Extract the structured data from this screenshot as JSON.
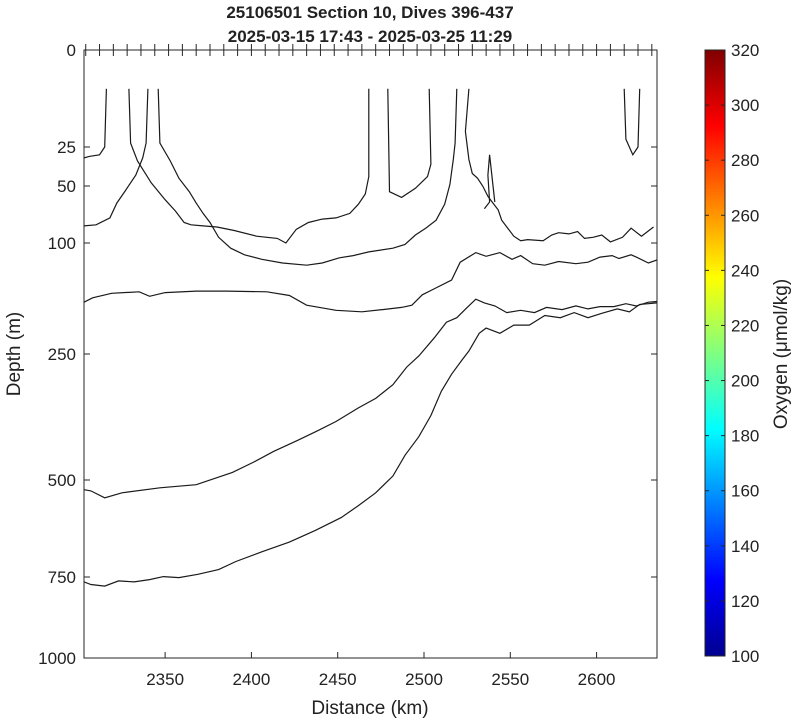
{
  "chart_data": {
    "type": "contour",
    "title_line1": "25106501 Section 10, Dives 396-437",
    "title_line2": "2025-03-15 17:43 - 2025-03-25 11:29",
    "xlabel": "Distance (km)",
    "ylabel": "Depth (m)",
    "xlim": [
      2303,
      2635
    ],
    "ylim": [
      1000,
      0
    ],
    "x_ticks": [
      2350,
      2400,
      2450,
      2500,
      2550,
      2600
    ],
    "y_ticks": [
      0,
      25,
      50,
      100,
      250,
      500,
      750,
      1000
    ],
    "y_scale": "nonlinear (stretched near surface)",
    "dive_markers_x": [
      2304,
      2312,
      2320,
      2328,
      2336,
      2344,
      2352,
      2360,
      2368,
      2376,
      2384,
      2392,
      2400,
      2408,
      2416,
      2424,
      2432,
      2440,
      2448,
      2456,
      2464,
      2472,
      2480,
      2488,
      2496,
      2504,
      2512,
      2520,
      2528,
      2536,
      2544,
      2552,
      2560,
      2568,
      2576,
      2584,
      2592,
      2600,
      2608,
      2616,
      2624,
      2632
    ],
    "colorbar": {
      "label": "Oxygen (μmol/kg)",
      "min": 100,
      "max": 320,
      "ticks": [
        100,
        120,
        140,
        160,
        180,
        200,
        220,
        240,
        260,
        280,
        300,
        320
      ],
      "colormap": "jet",
      "colors": [
        "#00008f",
        "#0000ff",
        "#0080ff",
        "#00ffff",
        "#80ff80",
        "#ffff00",
        "#ff8000",
        "#ff0000",
        "#800000"
      ]
    },
    "contour_lines": [
      [
        [
          2303,
          32
        ],
        [
          2306,
          31
        ],
        [
          2312,
          30
        ],
        [
          2315,
          25
        ],
        [
          2316,
          10
        ]
      ],
      [
        [
          2303,
          85
        ],
        [
          2310,
          84
        ],
        [
          2318,
          78
        ],
        [
          2322,
          65
        ],
        [
          2327,
          54
        ],
        [
          2333,
          43
        ],
        [
          2337,
          32
        ],
        [
          2339,
          24
        ],
        [
          2340,
          10
        ]
      ],
      [
        [
          2329,
          10
        ],
        [
          2330,
          24
        ],
        [
          2334,
          34
        ],
        [
          2342,
          48
        ],
        [
          2350,
          62
        ],
        [
          2356,
          72
        ],
        [
          2361,
          82
        ],
        [
          2365,
          84
        ],
        [
          2372,
          85
        ],
        [
          2380,
          86
        ],
        [
          2390,
          89
        ],
        [
          2403,
          94
        ],
        [
          2415,
          96
        ],
        [
          2420,
          100
        ],
        [
          2426,
          88
        ],
        [
          2433,
          82
        ],
        [
          2441,
          79
        ],
        [
          2449,
          78
        ],
        [
          2457,
          74
        ],
        [
          2462,
          66
        ],
        [
          2466,
          57
        ],
        [
          2468,
          44
        ],
        [
          2468,
          10
        ]
      ],
      [
        [
          2346,
          10
        ],
        [
          2347,
          24
        ],
        [
          2353,
          34
        ],
        [
          2358,
          45
        ],
        [
          2364,
          55
        ],
        [
          2368,
          65
        ],
        [
          2372,
          74
        ],
        [
          2376,
          82
        ],
        [
          2381,
          95
        ],
        [
          2388,
          107
        ],
        [
          2396,
          116
        ],
        [
          2406,
          122
        ],
        [
          2418,
          127
        ],
        [
          2432,
          130
        ],
        [
          2441,
          127
        ],
        [
          2451,
          120
        ],
        [
          2459,
          117
        ],
        [
          2468,
          112
        ],
        [
          2482,
          107
        ],
        [
          2489,
          102
        ],
        [
          2495,
          93
        ],
        [
          2501,
          87
        ],
        [
          2507,
          80
        ],
        [
          2512,
          66
        ],
        [
          2515,
          49
        ],
        [
          2517,
          33
        ],
        [
          2518,
          24
        ],
        [
          2519,
          10
        ]
      ],
      [
        [
          2479,
          10
        ],
        [
          2480,
          55
        ],
        [
          2487,
          60
        ],
        [
          2495,
          52
        ],
        [
          2502,
          44
        ],
        [
          2504,
          36
        ],
        [
          2503,
          10
        ]
      ],
      [
        [
          2526,
          10
        ],
        [
          2524,
          21
        ],
        [
          2526,
          33
        ],
        [
          2528,
          42
        ],
        [
          2531,
          45
        ],
        [
          2534,
          50
        ],
        [
          2537,
          59
        ],
        [
          2540,
          65
        ],
        [
          2543,
          71
        ],
        [
          2545,
          80
        ],
        [
          2552,
          94
        ],
        [
          2556,
          98
        ],
        [
          2560,
          97
        ],
        [
          2569,
          98
        ],
        [
          2574,
          93
        ],
        [
          2578,
          91
        ],
        [
          2584,
          92
        ],
        [
          2589,
          90
        ],
        [
          2593,
          96
        ],
        [
          2598,
          95
        ],
        [
          2603,
          93
        ],
        [
          2608,
          99
        ],
        [
          2615,
          95
        ],
        [
          2620,
          87
        ],
        [
          2626,
          94
        ],
        [
          2633,
          86
        ]
      ],
      [
        [
          2535,
          70
        ],
        [
          2538,
          64
        ],
        [
          2537,
          43
        ],
        [
          2538,
          30
        ],
        [
          2541,
          64
        ]
      ],
      [
        [
          2616,
          10
        ],
        [
          2617,
          23
        ],
        [
          2621,
          30
        ],
        [
          2624,
          25
        ],
        [
          2625,
          10
        ]
      ],
      [
        [
          2303,
          180
        ],
        [
          2308,
          174
        ],
        [
          2319,
          168
        ],
        [
          2335,
          166
        ],
        [
          2341,
          172
        ],
        [
          2350,
          167
        ],
        [
          2368,
          165
        ],
        [
          2386,
          165
        ],
        [
          2409,
          166
        ],
        [
          2422,
          171
        ],
        [
          2432,
          184
        ],
        [
          2449,
          191
        ],
        [
          2464,
          193
        ],
        [
          2476,
          190
        ],
        [
          2487,
          187
        ],
        [
          2493,
          184
        ],
        [
          2499,
          170
        ],
        [
          2505,
          163
        ],
        [
          2516,
          150
        ],
        [
          2521,
          126
        ],
        [
          2530,
          113
        ],
        [
          2536,
          118
        ],
        [
          2544,
          113
        ],
        [
          2551,
          122
        ],
        [
          2556,
          117
        ],
        [
          2563,
          128
        ],
        [
          2570,
          130
        ],
        [
          2578,
          125
        ],
        [
          2588,
          128
        ],
        [
          2595,
          126
        ],
        [
          2602,
          119
        ],
        [
          2609,
          117
        ],
        [
          2613,
          121
        ],
        [
          2620,
          116
        ],
        [
          2623,
          119
        ],
        [
          2630,
          127
        ],
        [
          2635,
          123
        ]
      ],
      [
        [
          2303,
          525
        ],
        [
          2307,
          528
        ],
        [
          2315,
          546
        ],
        [
          2325,
          533
        ],
        [
          2347,
          520
        ],
        [
          2368,
          512
        ],
        [
          2389,
          485
        ],
        [
          2401,
          465
        ],
        [
          2413,
          443
        ],
        [
          2427,
          421
        ],
        [
          2438,
          403
        ],
        [
          2449,
          384
        ],
        [
          2462,
          357
        ],
        [
          2472,
          338
        ],
        [
          2482,
          311
        ],
        [
          2490,
          276
        ],
        [
          2497,
          254
        ],
        [
          2506,
          228
        ],
        [
          2513,
          207
        ],
        [
          2519,
          201
        ],
        [
          2525,
          187
        ],
        [
          2530,
          176
        ],
        [
          2535,
          181
        ],
        [
          2541,
          185
        ],
        [
          2548,
          194
        ],
        [
          2556,
          191
        ],
        [
          2564,
          194
        ],
        [
          2571,
          187
        ],
        [
          2580,
          190
        ],
        [
          2588,
          185
        ],
        [
          2595,
          189
        ],
        [
          2602,
          186
        ],
        [
          2610,
          186
        ],
        [
          2617,
          182
        ],
        [
          2623,
          185
        ],
        [
          2630,
          180
        ],
        [
          2635,
          179
        ]
      ],
      [
        [
          2303,
          765
        ],
        [
          2307,
          773
        ],
        [
          2315,
          778
        ],
        [
          2323,
          762
        ],
        [
          2332,
          765
        ],
        [
          2341,
          758
        ],
        [
          2349,
          749
        ],
        [
          2358,
          752
        ],
        [
          2369,
          743
        ],
        [
          2381,
          731
        ],
        [
          2391,
          710
        ],
        [
          2406,
          685
        ],
        [
          2422,
          660
        ],
        [
          2437,
          630
        ],
        [
          2452,
          597
        ],
        [
          2462,
          566
        ],
        [
          2472,
          533
        ],
        [
          2482,
          492
        ],
        [
          2489,
          451
        ],
        [
          2497,
          414
        ],
        [
          2504,
          372
        ],
        [
          2510,
          324
        ],
        [
          2516,
          290
        ],
        [
          2522,
          262
        ],
        [
          2526,
          246
        ],
        [
          2532,
          222
        ],
        [
          2536,
          215
        ],
        [
          2544,
          222
        ],
        [
          2552,
          211
        ],
        [
          2561,
          211
        ],
        [
          2570,
          198
        ],
        [
          2579,
          201
        ],
        [
          2587,
          194
        ],
        [
          2595,
          201
        ],
        [
          2603,
          195
        ],
        [
          2612,
          189
        ],
        [
          2619,
          193
        ],
        [
          2625,
          183
        ],
        [
          2630,
          182
        ],
        [
          2635,
          181
        ]
      ]
    ]
  }
}
